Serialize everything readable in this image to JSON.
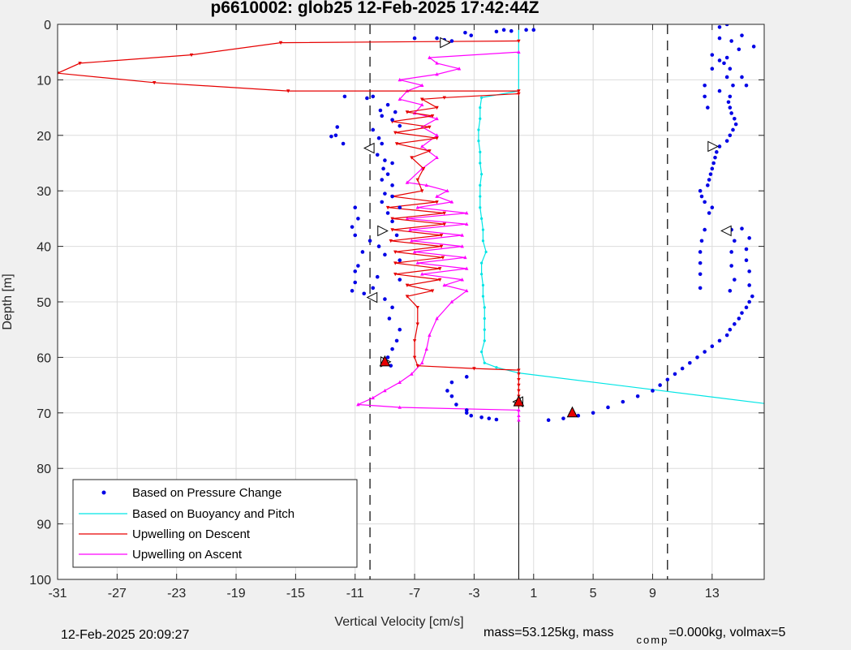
{
  "title": "p6610002: glob25 12-Feb-2025 17:42:44Z",
  "footer": {
    "timestamp": "12-Feb-2025 20:09:27",
    "mass_text_1": "mass=53.125kg, mass",
    "mass_sub": "comp",
    "mass_text_2": "=0.000kg, volmax=5"
  },
  "colors": {
    "pressure": "#0000e6",
    "buoyancy": "#00e5e5",
    "descent": "#e60000",
    "ascent": "#ff00ff",
    "axis": "#262626",
    "grid": "#dcdcdc"
  },
  "chart_data": {
    "type": "scatter",
    "title": "p6610002: glob25 12-Feb-2025 17:42:44Z",
    "xlabel": "Vertical Velocity [cm/s]",
    "ylabel": "Depth [m]",
    "xlim": [
      -31,
      16.5
    ],
    "ylim": [
      0,
      100
    ],
    "y_reversed": true,
    "grid": true,
    "legend_position": "bottom-left",
    "xticks": [
      -31,
      -27,
      -23,
      -19,
      -15,
      -11,
      -7,
      -3,
      1,
      5,
      9,
      13
    ],
    "xtick_labels": [
      "-31",
      "-27",
      "-23",
      "-19",
      "-15",
      "-11",
      "-7",
      "-3",
      "1",
      "5",
      "9",
      "13"
    ],
    "yticks": [
      0,
      10,
      20,
      30,
      40,
      50,
      60,
      70,
      80,
      90,
      100
    ],
    "ytick_labels": [
      "0",
      "10",
      "20",
      "30",
      "40",
      "50",
      "60",
      "70",
      "80",
      "90",
      "100"
    ],
    "dashed_vlines": [
      -10,
      10
    ],
    "solid_vline": 0,
    "legend": [
      {
        "label": "Based on Pressure Change",
        "key": "pressure",
        "style": "dot"
      },
      {
        "label": "Based on Buoyancy and Pitch",
        "key": "buoyancy",
        "style": "line"
      },
      {
        "label": "Upwelling on Descent",
        "key": "descent",
        "style": "line"
      },
      {
        "label": "Upwelling on Ascent",
        "key": "ascent",
        "style": "line"
      }
    ],
    "series": {
      "descent": [
        [
          0,
          3
        ],
        [
          -16,
          3.3
        ],
        [
          -22,
          5.5
        ],
        [
          -29.5,
          7
        ],
        [
          -31,
          8.8
        ],
        [
          -24.5,
          10.5
        ],
        [
          -15.5,
          12
        ],
        [
          0,
          12
        ],
        [
          0,
          12.5
        ],
        [
          -5,
          13.2
        ],
        [
          -6.5,
          13.5
        ],
        [
          -5.5,
          15
        ],
        [
          -7.5,
          15.8
        ],
        [
          -5.8,
          16.5
        ],
        [
          -8.5,
          17.5
        ],
        [
          -6,
          18.5
        ],
        [
          -8.3,
          19.5
        ],
        [
          -5.5,
          20.5
        ],
        [
          -8.2,
          21.5
        ],
        [
          -6,
          22.8
        ],
        [
          -7.2,
          24
        ],
        [
          -6.4,
          26
        ],
        [
          -6.8,
          28
        ],
        [
          -6.5,
          30
        ],
        [
          -8.5,
          31
        ],
        [
          -5.5,
          32
        ],
        [
          -8.8,
          33
        ],
        [
          -5,
          34
        ],
        [
          -8.5,
          35
        ],
        [
          -5,
          36
        ],
        [
          -8.5,
          37
        ],
        [
          -5.2,
          38
        ],
        [
          -8.6,
          39
        ],
        [
          -5.2,
          40
        ],
        [
          -8.3,
          41
        ],
        [
          -5.1,
          42
        ],
        [
          -8.3,
          43
        ],
        [
          -5.3,
          44
        ],
        [
          -8.3,
          45
        ],
        [
          -5.3,
          46
        ],
        [
          -7.5,
          47
        ],
        [
          -5.8,
          48
        ],
        [
          -7.5,
          49
        ],
        [
          -6.8,
          51
        ],
        [
          -6.8,
          54
        ],
        [
          -7,
          57
        ],
        [
          -7,
          60
        ],
        [
          -6.8,
          61.5
        ],
        [
          -3,
          62
        ],
        [
          0,
          62.3
        ],
        [
          0,
          63
        ],
        [
          0,
          64
        ],
        [
          0,
          65
        ],
        [
          0,
          66
        ],
        [
          0,
          67
        ],
        [
          0,
          68
        ],
        [
          0,
          68.7
        ]
      ],
      "ascent": [
        [
          0,
          71.3
        ],
        [
          0,
          70.5
        ],
        [
          0,
          69.5
        ],
        [
          -8,
          69
        ],
        [
          -10.8,
          68.5
        ],
        [
          -9.8,
          67.3
        ],
        [
          -9,
          66
        ],
        [
          -8,
          64.5
        ],
        [
          -7.2,
          63
        ],
        [
          -6.5,
          61
        ],
        [
          -6.2,
          58.5
        ],
        [
          -6,
          56
        ],
        [
          -5.5,
          53
        ],
        [
          -4.5,
          50
        ],
        [
          -3.5,
          48
        ],
        [
          -5,
          47
        ],
        [
          -3.8,
          46
        ],
        [
          -6.5,
          45
        ],
        [
          -3.5,
          44
        ],
        [
          -6.8,
          43
        ],
        [
          -3.6,
          42
        ],
        [
          -7,
          41
        ],
        [
          -3.8,
          40
        ],
        [
          -7.2,
          39
        ],
        [
          -3.8,
          38
        ],
        [
          -7.3,
          37
        ],
        [
          -3.5,
          36
        ],
        [
          -7.5,
          35
        ],
        [
          -3.5,
          34
        ],
        [
          -6.8,
          33
        ],
        [
          -4.5,
          32
        ],
        [
          -5.5,
          31
        ],
        [
          -4.8,
          30
        ],
        [
          -6.2,
          29
        ],
        [
          -7.5,
          28.5
        ],
        [
          -6.5,
          26
        ],
        [
          -5.5,
          24
        ],
        [
          -6.5,
          22
        ],
        [
          -5.5,
          20
        ],
        [
          -6.5,
          18.5
        ],
        [
          -5.5,
          17
        ],
        [
          -7,
          16
        ],
        [
          -6.5,
          14.5
        ],
        [
          -8,
          13.5
        ],
        [
          -7.5,
          12
        ],
        [
          -6.5,
          11
        ],
        [
          -8,
          10
        ],
        [
          -5.5,
          9
        ],
        [
          -4,
          8
        ],
        [
          -5.5,
          7
        ],
        [
          -6,
          6
        ],
        [
          0,
          5
        ]
      ],
      "buoyancy": [
        [
          0,
          1
        ],
        [
          0,
          4
        ],
        [
          0,
          8
        ],
        [
          0,
          12
        ],
        [
          -2.5,
          13.2
        ],
        [
          -2.6,
          15
        ],
        [
          -2.6,
          17
        ],
        [
          -2.7,
          19
        ],
        [
          -2.7,
          21
        ],
        [
          -2.6,
          23
        ],
        [
          -2.6,
          25
        ],
        [
          -2.5,
          27
        ],
        [
          -2.6,
          29
        ],
        [
          -2.6,
          31
        ],
        [
          -2.6,
          33
        ],
        [
          -2.5,
          35
        ],
        [
          -2.4,
          37
        ],
        [
          -2.4,
          39
        ],
        [
          -2.2,
          41
        ],
        [
          -2.5,
          43
        ],
        [
          -2.5,
          45
        ],
        [
          -2.4,
          47
        ],
        [
          -2.4,
          49
        ],
        [
          -2.3,
          51
        ],
        [
          -2.3,
          53
        ],
        [
          -2.3,
          55
        ],
        [
          -2.3,
          57
        ],
        [
          -2.5,
          59
        ],
        [
          -2.3,
          61
        ],
        [
          -1.5,
          61.8
        ],
        [
          0,
          62.8
        ],
        [
          18,
          68.8
        ]
      ],
      "pressure": [
        [
          -7,
          2.5
        ],
        [
          -5.5,
          2.5
        ],
        [
          -3.6,
          1.5
        ],
        [
          -3.2,
          2
        ],
        [
          -1.5,
          1.3
        ],
        [
          -1,
          1
        ],
        [
          -0.5,
          1.2
        ],
        [
          0.5,
          1
        ],
        [
          1,
          1
        ],
        [
          -5,
          2.8
        ],
        [
          -4.5,
          3
        ],
        [
          -11.7,
          13
        ],
        [
          -10.2,
          13.3
        ],
        [
          -9.8,
          13
        ],
        [
          -8.8,
          14.5
        ],
        [
          -9.3,
          15.5
        ],
        [
          -8.3,
          15.8
        ],
        [
          -9.2,
          16.5
        ],
        [
          -8.5,
          17.2
        ],
        [
          -8,
          18.3
        ],
        [
          -12.2,
          18.5
        ],
        [
          -12.3,
          20
        ],
        [
          -11.8,
          21.5
        ],
        [
          -12.6,
          20.2
        ],
        [
          -9.8,
          19
        ],
        [
          -9.4,
          20.5
        ],
        [
          -9.2,
          21.5
        ],
        [
          -9.5,
          23.5
        ],
        [
          -9,
          24.5
        ],
        [
          -8.5,
          25
        ],
        [
          -9.1,
          26
        ],
        [
          -8.8,
          27
        ],
        [
          -9.2,
          28
        ],
        [
          -8.5,
          29
        ],
        [
          -9,
          30.5
        ],
        [
          -8.5,
          31
        ],
        [
          -9.2,
          32
        ],
        [
          -8,
          33
        ],
        [
          -11,
          33
        ],
        [
          -10.8,
          35
        ],
        [
          -8.8,
          34
        ],
        [
          -8.5,
          35.5
        ],
        [
          -11.2,
          36.5
        ],
        [
          -11,
          38
        ],
        [
          -9.2,
          37
        ],
        [
          -8.2,
          38
        ],
        [
          -10,
          39
        ],
        [
          -9.4,
          40
        ],
        [
          -10.5,
          41
        ],
        [
          -9,
          41.5
        ],
        [
          -8,
          42.5
        ],
        [
          -10.8,
          43.5
        ],
        [
          -11,
          44.5
        ],
        [
          -9.5,
          45.5
        ],
        [
          -8,
          46
        ],
        [
          -11,
          46.5
        ],
        [
          -9.8,
          47.5
        ],
        [
          -10.4,
          48.5
        ],
        [
          -11.2,
          48
        ],
        [
          -9,
          49.5
        ],
        [
          -8.5,
          51
        ],
        [
          -8.7,
          53
        ],
        [
          -8,
          55
        ],
        [
          -8.2,
          57
        ],
        [
          -8.5,
          58.5
        ],
        [
          -8.8,
          60
        ],
        [
          -8.6,
          61.5
        ],
        [
          -3.5,
          63.5
        ],
        [
          -4.5,
          64.5
        ],
        [
          -4.8,
          66
        ],
        [
          -4.5,
          67
        ],
        [
          -4.2,
          68.5
        ],
        [
          -3.5,
          69.5
        ],
        [
          -3.5,
          70
        ],
        [
          -3.2,
          70.5
        ],
        [
          -2.5,
          70.8
        ],
        [
          -2,
          71
        ],
        [
          -1.5,
          71.2
        ],
        [
          2,
          71.3
        ],
        [
          3,
          71
        ],
        [
          4,
          70.5
        ],
        [
          5,
          70
        ],
        [
          6,
          69
        ],
        [
          7,
          68
        ],
        [
          8,
          67
        ],
        [
          9,
          66
        ],
        [
          9.5,
          65
        ],
        [
          10,
          64
        ],
        [
          10.5,
          63
        ],
        [
          11,
          62
        ],
        [
          11.5,
          61
        ],
        [
          12,
          60
        ],
        [
          12.5,
          59
        ],
        [
          13,
          58
        ],
        [
          13.5,
          57
        ],
        [
          14,
          56
        ],
        [
          14.2,
          55
        ],
        [
          14.5,
          54
        ],
        [
          14.8,
          53
        ],
        [
          15,
          52
        ],
        [
          15.3,
          51
        ],
        [
          15.5,
          50
        ],
        [
          15.7,
          49
        ],
        [
          12.2,
          47.5
        ],
        [
          14.2,
          48
        ],
        [
          15.5,
          47
        ],
        [
          12.2,
          45
        ],
        [
          14.5,
          46
        ],
        [
          15.5,
          44.5
        ],
        [
          12.2,
          43
        ],
        [
          14.3,
          43.5
        ],
        [
          15.3,
          42.5
        ],
        [
          12.2,
          41
        ],
        [
          14.3,
          41
        ],
        [
          15.3,
          40.5
        ],
        [
          12.3,
          39
        ],
        [
          14.5,
          39
        ],
        [
          15.5,
          38.5
        ],
        [
          12.5,
          37
        ],
        [
          14.3,
          37
        ],
        [
          15,
          36.8
        ],
        [
          12.8,
          34
        ],
        [
          13,
          33
        ],
        [
          12.5,
          32
        ],
        [
          12.3,
          31
        ],
        [
          12.2,
          30
        ],
        [
          12.7,
          29
        ],
        [
          12.8,
          28
        ],
        [
          12.9,
          27
        ],
        [
          13,
          26
        ],
        [
          13.1,
          25
        ],
        [
          13.2,
          24
        ],
        [
          13.3,
          23
        ],
        [
          13.5,
          22
        ],
        [
          14,
          21
        ],
        [
          14.2,
          20
        ],
        [
          14.4,
          19
        ],
        [
          14.6,
          18
        ],
        [
          14.5,
          17
        ],
        [
          14.3,
          16
        ],
        [
          14.2,
          15
        ],
        [
          14.1,
          14
        ],
        [
          14.2,
          13
        ],
        [
          12.5,
          13
        ],
        [
          12.5,
          11
        ],
        [
          12.7,
          15
        ],
        [
          13.5,
          12
        ],
        [
          14.4,
          11
        ],
        [
          15.3,
          11
        ],
        [
          13,
          8
        ],
        [
          13.8,
          7
        ],
        [
          14.2,
          8
        ],
        [
          15,
          9.5
        ],
        [
          14,
          9.5
        ],
        [
          13.5,
          6.5
        ],
        [
          14,
          6
        ],
        [
          13.5,
          2.5
        ],
        [
          14.3,
          3
        ],
        [
          15,
          2
        ],
        [
          14.8,
          4.5
        ],
        [
          15.8,
          4
        ],
        [
          13,
          5.5
        ],
        [
          13.5,
          0.5
        ],
        [
          14,
          0
        ]
      ],
      "pressure_markers": [
        [
          -5,
          3.3
        ],
        [
          -10,
          22.3
        ],
        [
          -9.2,
          37.2
        ],
        [
          -9.8,
          49.2
        ],
        [
          -9,
          60.8
        ],
        [
          0,
          68
        ],
        [
          13,
          22
        ],
        [
          14,
          37.2
        ]
      ],
      "triangle_up_markers": [
        [
          -9,
          60.8
        ],
        [
          0,
          68
        ],
        [
          3.6,
          70
        ]
      ]
    }
  }
}
